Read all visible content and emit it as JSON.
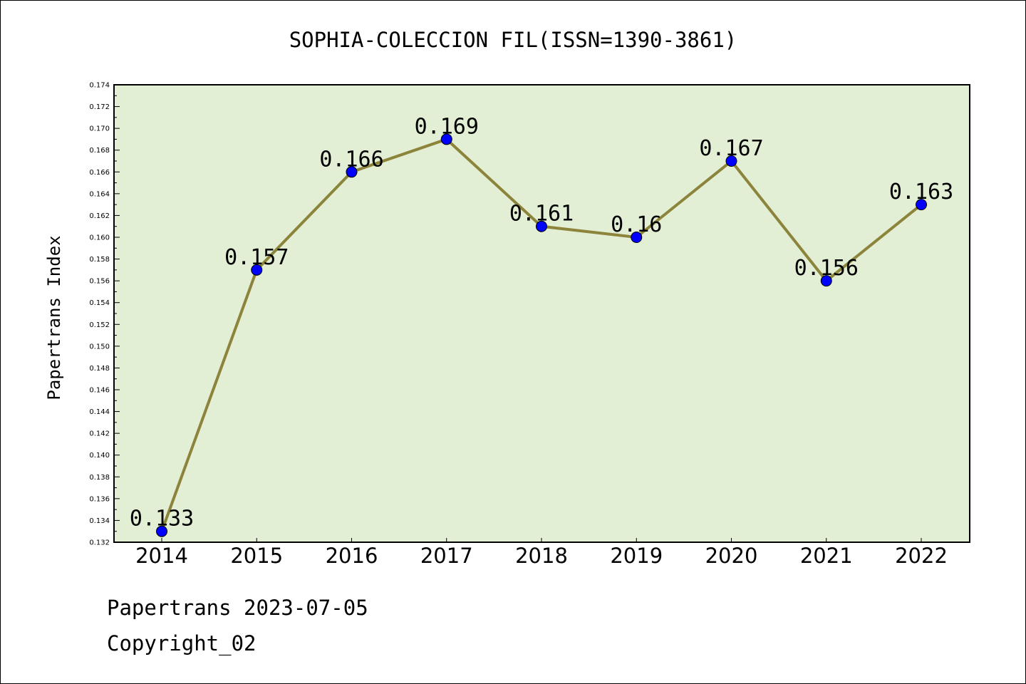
{
  "chart_data": {
    "type": "line",
    "title": "SOPHIA-COLECCION FIL(ISSN=1390-3861)",
    "xlabel": "",
    "ylabel": "Papertrans Index",
    "categories": [
      "2014",
      "2015",
      "2016",
      "2017",
      "2018",
      "2019",
      "2020",
      "2021",
      "2022"
    ],
    "values": [
      0.133,
      0.157,
      0.166,
      0.169,
      0.161,
      0.16,
      0.167,
      0.156,
      0.163
    ],
    "data_labels": [
      "0.133",
      "0.157",
      "0.166",
      "0.169",
      "0.161",
      "0.16",
      "0.167",
      "0.156",
      "0.163"
    ],
    "ylim": [
      0.132,
      0.174
    ],
    "yticks": [
      "0.132",
      "0.134",
      "0.136",
      "0.138",
      "0.140",
      "0.142",
      "0.144",
      "0.146",
      "0.148",
      "0.150",
      "0.152",
      "0.154",
      "0.156",
      "0.158",
      "0.160",
      "0.162",
      "0.164",
      "0.166",
      "0.168",
      "0.170",
      "0.172",
      "0.174"
    ],
    "grid": false,
    "colors": {
      "plot_background": "#e2efd5",
      "line": "#8b843a",
      "marker": "#0000ff"
    }
  },
  "footer": {
    "line1": "Papertrans 2023-07-05",
    "line2": "Copyright_02"
  }
}
